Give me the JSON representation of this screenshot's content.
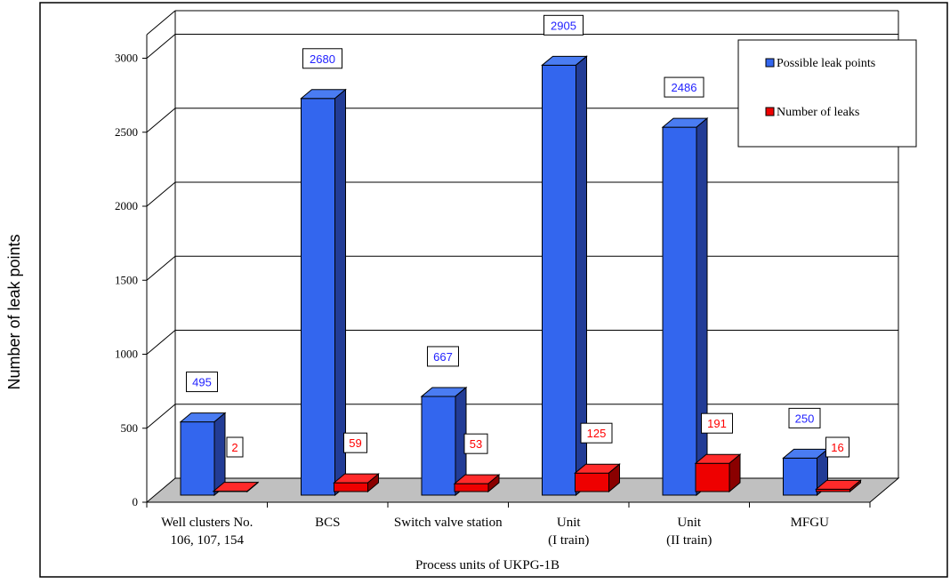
{
  "chart_data": {
    "type": "bar",
    "categories": [
      [
        "Well clusters No.",
        "106, 107, 154"
      ],
      [
        "BCS"
      ],
      [
        "Switch valve station"
      ],
      [
        "Unit",
        "(I train)"
      ],
      [
        "Unit",
        "(II train)"
      ],
      [
        "MFGU"
      ]
    ],
    "series": [
      {
        "name": "Possible leak points",
        "values": [
          495,
          2680,
          667,
          2905,
          2486,
          250
        ],
        "color": "#3366ee",
        "label_color": "#2222ff"
      },
      {
        "name": "Number of leaks",
        "values": [
          2,
          59,
          53,
          125,
          191,
          16
        ],
        "color": "#ee0000",
        "label_color": "#ff0000"
      }
    ],
    "xlabel": "Process units of UKPG-1B",
    "ylabel": "Number of leak points",
    "ylim": [
      0,
      3000
    ],
    "yticks": [
      0,
      500,
      1000,
      1500,
      2000,
      2500,
      3000
    ],
    "grid": true,
    "legend_position": "top-right"
  }
}
